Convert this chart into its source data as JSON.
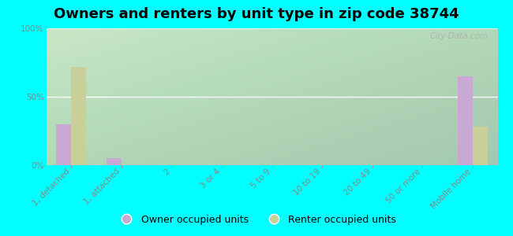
{
  "title": "Owners and renters by unit type in zip code 38744",
  "categories": [
    "1, detached",
    "1, attached",
    "2",
    "3 or 4",
    "5 to 9",
    "10 to 19",
    "20 to 49",
    "50 or more",
    "Mobile home"
  ],
  "owner_values": [
    30,
    5,
    0,
    0,
    0,
    0,
    0,
    0,
    65
  ],
  "renter_values": [
    72,
    0,
    0,
    0,
    0,
    0,
    0,
    0,
    28
  ],
  "owner_color": "#c9a8d4",
  "renter_color": "#c8cf99",
  "background_color": "#00ffff",
  "ylabel_ticks": [
    "0%",
    "50%",
    "100%"
  ],
  "ytick_vals": [
    0,
    50,
    100
  ],
  "ylim": [
    0,
    100
  ],
  "bar_width": 0.3,
  "title_fontsize": 13,
  "tick_fontsize": 7.5,
  "legend_fontsize": 9,
  "watermark": "City-Data.com"
}
